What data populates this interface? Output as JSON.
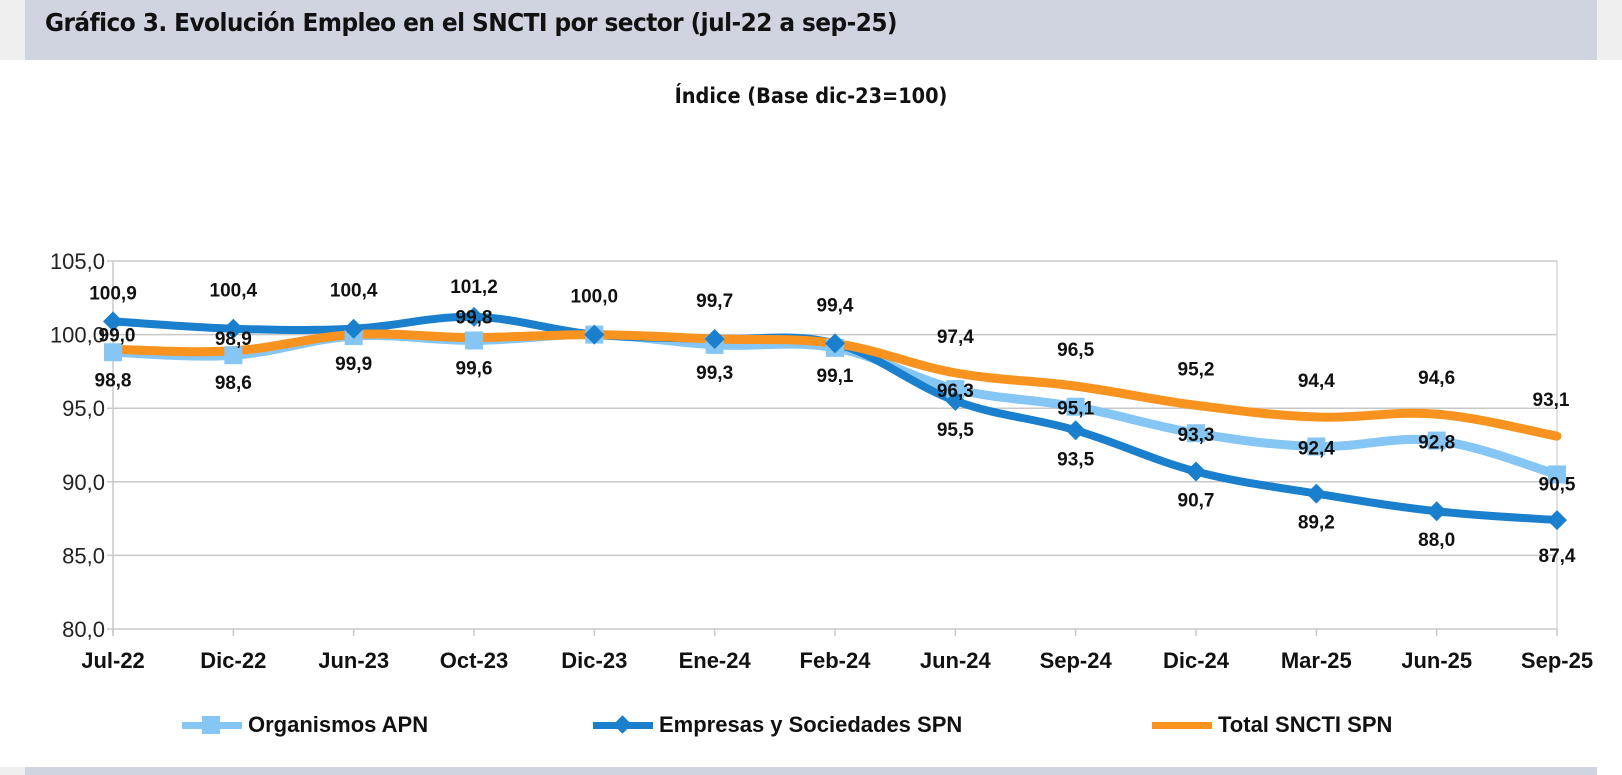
{
  "header": {
    "title": "Gráfico 3. Evolución Empleo en el SNCTI por sector (jul-22 a sep-25)"
  },
  "chart_data": {
    "type": "line",
    "title": "Índice (Base dic-23=100)",
    "xlabel": "",
    "ylabel": "",
    "ylim": [
      80,
      105
    ],
    "yticks": [
      80,
      85,
      90,
      95,
      100,
      105
    ],
    "ytick_labels": [
      "80,0",
      "85,0",
      "90,0",
      "95,0",
      "100,0",
      "105,0"
    ],
    "grid": true,
    "legend_position": "bottom",
    "categories": [
      "Jul-22",
      "Dic-22",
      "Jun-23",
      "Oct-23",
      "Dic-23",
      "Ene-24",
      "Feb-24",
      "Jun-24",
      "Sep-24",
      "Dic-24",
      "Mar-25",
      "Jun-25",
      "Sep-25"
    ],
    "series": [
      {
        "name": "Organismos APN",
        "color": "#85c6f5",
        "marker": "square",
        "values": [
          98.8,
          98.6,
          99.9,
          99.6,
          100.0,
          99.3,
          99.1,
          96.3,
          95.1,
          93.3,
          92.4,
          92.8,
          90.5
        ],
        "labels": [
          "98,8",
          "98,6",
          "99,9",
          "99,6",
          "",
          "99,3",
          "99,1",
          "96,3",
          "95,1",
          "93,3",
          "92,4",
          "92,8",
          "90,5"
        ]
      },
      {
        "name": "Empresas y Sociedades SPN",
        "color": "#1a7fcc",
        "marker": "diamond",
        "values": [
          100.9,
          100.4,
          100.4,
          101.2,
          100.0,
          99.7,
          99.4,
          95.5,
          93.5,
          90.7,
          89.2,
          88.0,
          87.4
        ],
        "labels": [
          "100,9",
          "100,4",
          "100,4",
          "101,2",
          "100,0",
          "99,7",
          "99,4",
          "95,5",
          "93,5",
          "90,7",
          "89,2",
          "88,0",
          "87,4"
        ]
      },
      {
        "name": "Total SNCTI SPN",
        "color": "#f7931e",
        "marker": "none",
        "values": [
          99.0,
          98.9,
          100.0,
          99.8,
          100.0,
          99.7,
          99.4,
          97.4,
          96.5,
          95.2,
          94.4,
          94.6,
          93.1
        ],
        "labels": [
          "99,0",
          "98,9",
          "",
          "99,8",
          "",
          "",
          "",
          "97,4",
          "96,5",
          "95,2",
          "94,4",
          "94,6",
          "93,1"
        ]
      }
    ]
  }
}
